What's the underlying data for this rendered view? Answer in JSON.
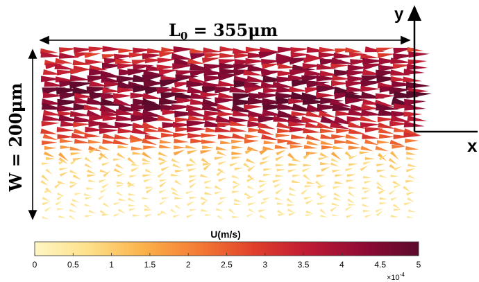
{
  "chart_data": {
    "type": "quiver",
    "title": "",
    "annotations": {
      "length_label": "L",
      "length_subscript": "0",
      "length_value": " = 355μm",
      "width_label": "W = 200μm"
    },
    "axes_indicator": {
      "x": "x",
      "y": "y"
    },
    "colorbar": {
      "label": "U(m/s)",
      "ticks": [
        "0",
        "0.5",
        "1",
        "1.5",
        "2",
        "2.5",
        "3",
        "3.5",
        "4",
        "4.5",
        "5"
      ],
      "multiplier": "×10",
      "exponent": "-4",
      "range": [
        0,
        0.0005
      ],
      "colormap": [
        "#fff6c4",
        "#fde08a",
        "#fbb34a",
        "#f47a34",
        "#e0402b",
        "#bf1a34",
        "#8e0a35",
        "#5c0a2c"
      ]
    },
    "domain": {
      "length_um": 355,
      "width_um": 200
    },
    "flow_profile": {
      "description_bands": [
        {
          "y_fraction": 1.0,
          "speed": 0.00034
        },
        {
          "y_fraction": 0.85,
          "speed": 0.0004
        },
        {
          "y_fraction": 0.7,
          "speed": 0.00045
        },
        {
          "y_fraction": 0.55,
          "speed": 0.00036
        },
        {
          "y_fraction": 0.45,
          "speed": 0.00022
        },
        {
          "y_fraction": 0.35,
          "speed": 0.0001
        },
        {
          "y_fraction": 0.2,
          "speed": 7e-05
        },
        {
          "y_fraction": 0.0,
          "speed": 5e-05
        }
      ]
    }
  }
}
